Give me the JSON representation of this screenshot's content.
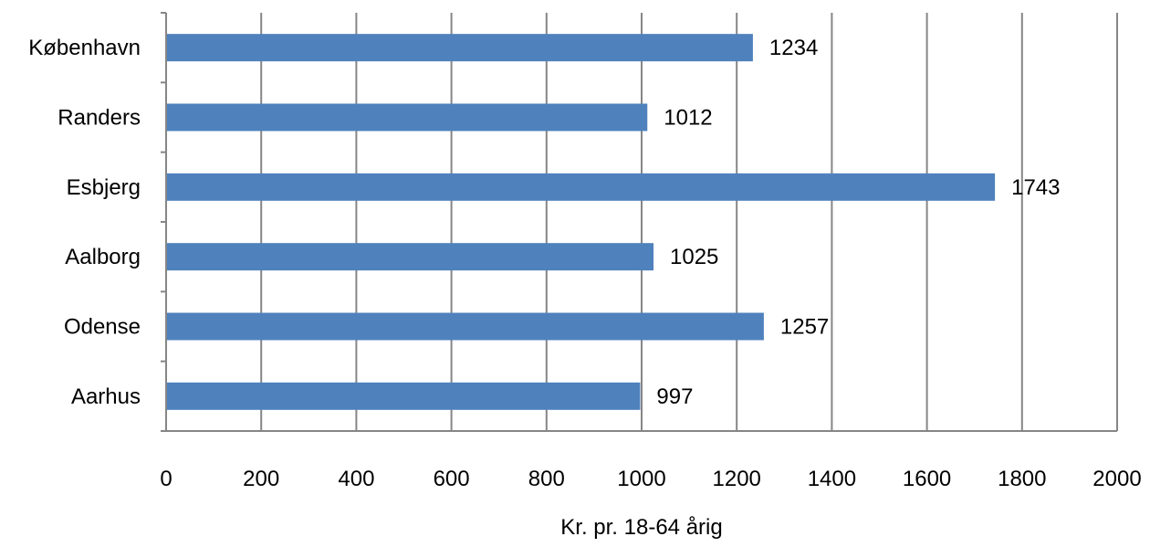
{
  "chart_data": {
    "type": "bar",
    "orientation": "horizontal",
    "categories": [
      "København",
      "Randers",
      "Esbjerg",
      "Aalborg",
      "Odense",
      "Aarhus"
    ],
    "values": [
      1234,
      1012,
      1743,
      1025,
      1257,
      997
    ],
    "data_labels": [
      "1234",
      "1012",
      "1743",
      "1025",
      "1257",
      "997"
    ],
    "xlabel": "Kr. pr. 18-64 årig",
    "ylabel": "",
    "xlim": [
      0,
      2000
    ],
    "x_ticks": [
      0,
      200,
      400,
      600,
      800,
      1000,
      1200,
      1400,
      1600,
      1800,
      2000
    ],
    "grid": "vertical",
    "legend": "none",
    "bar_color": "#4F81BD",
    "grid_color": "#868686"
  }
}
